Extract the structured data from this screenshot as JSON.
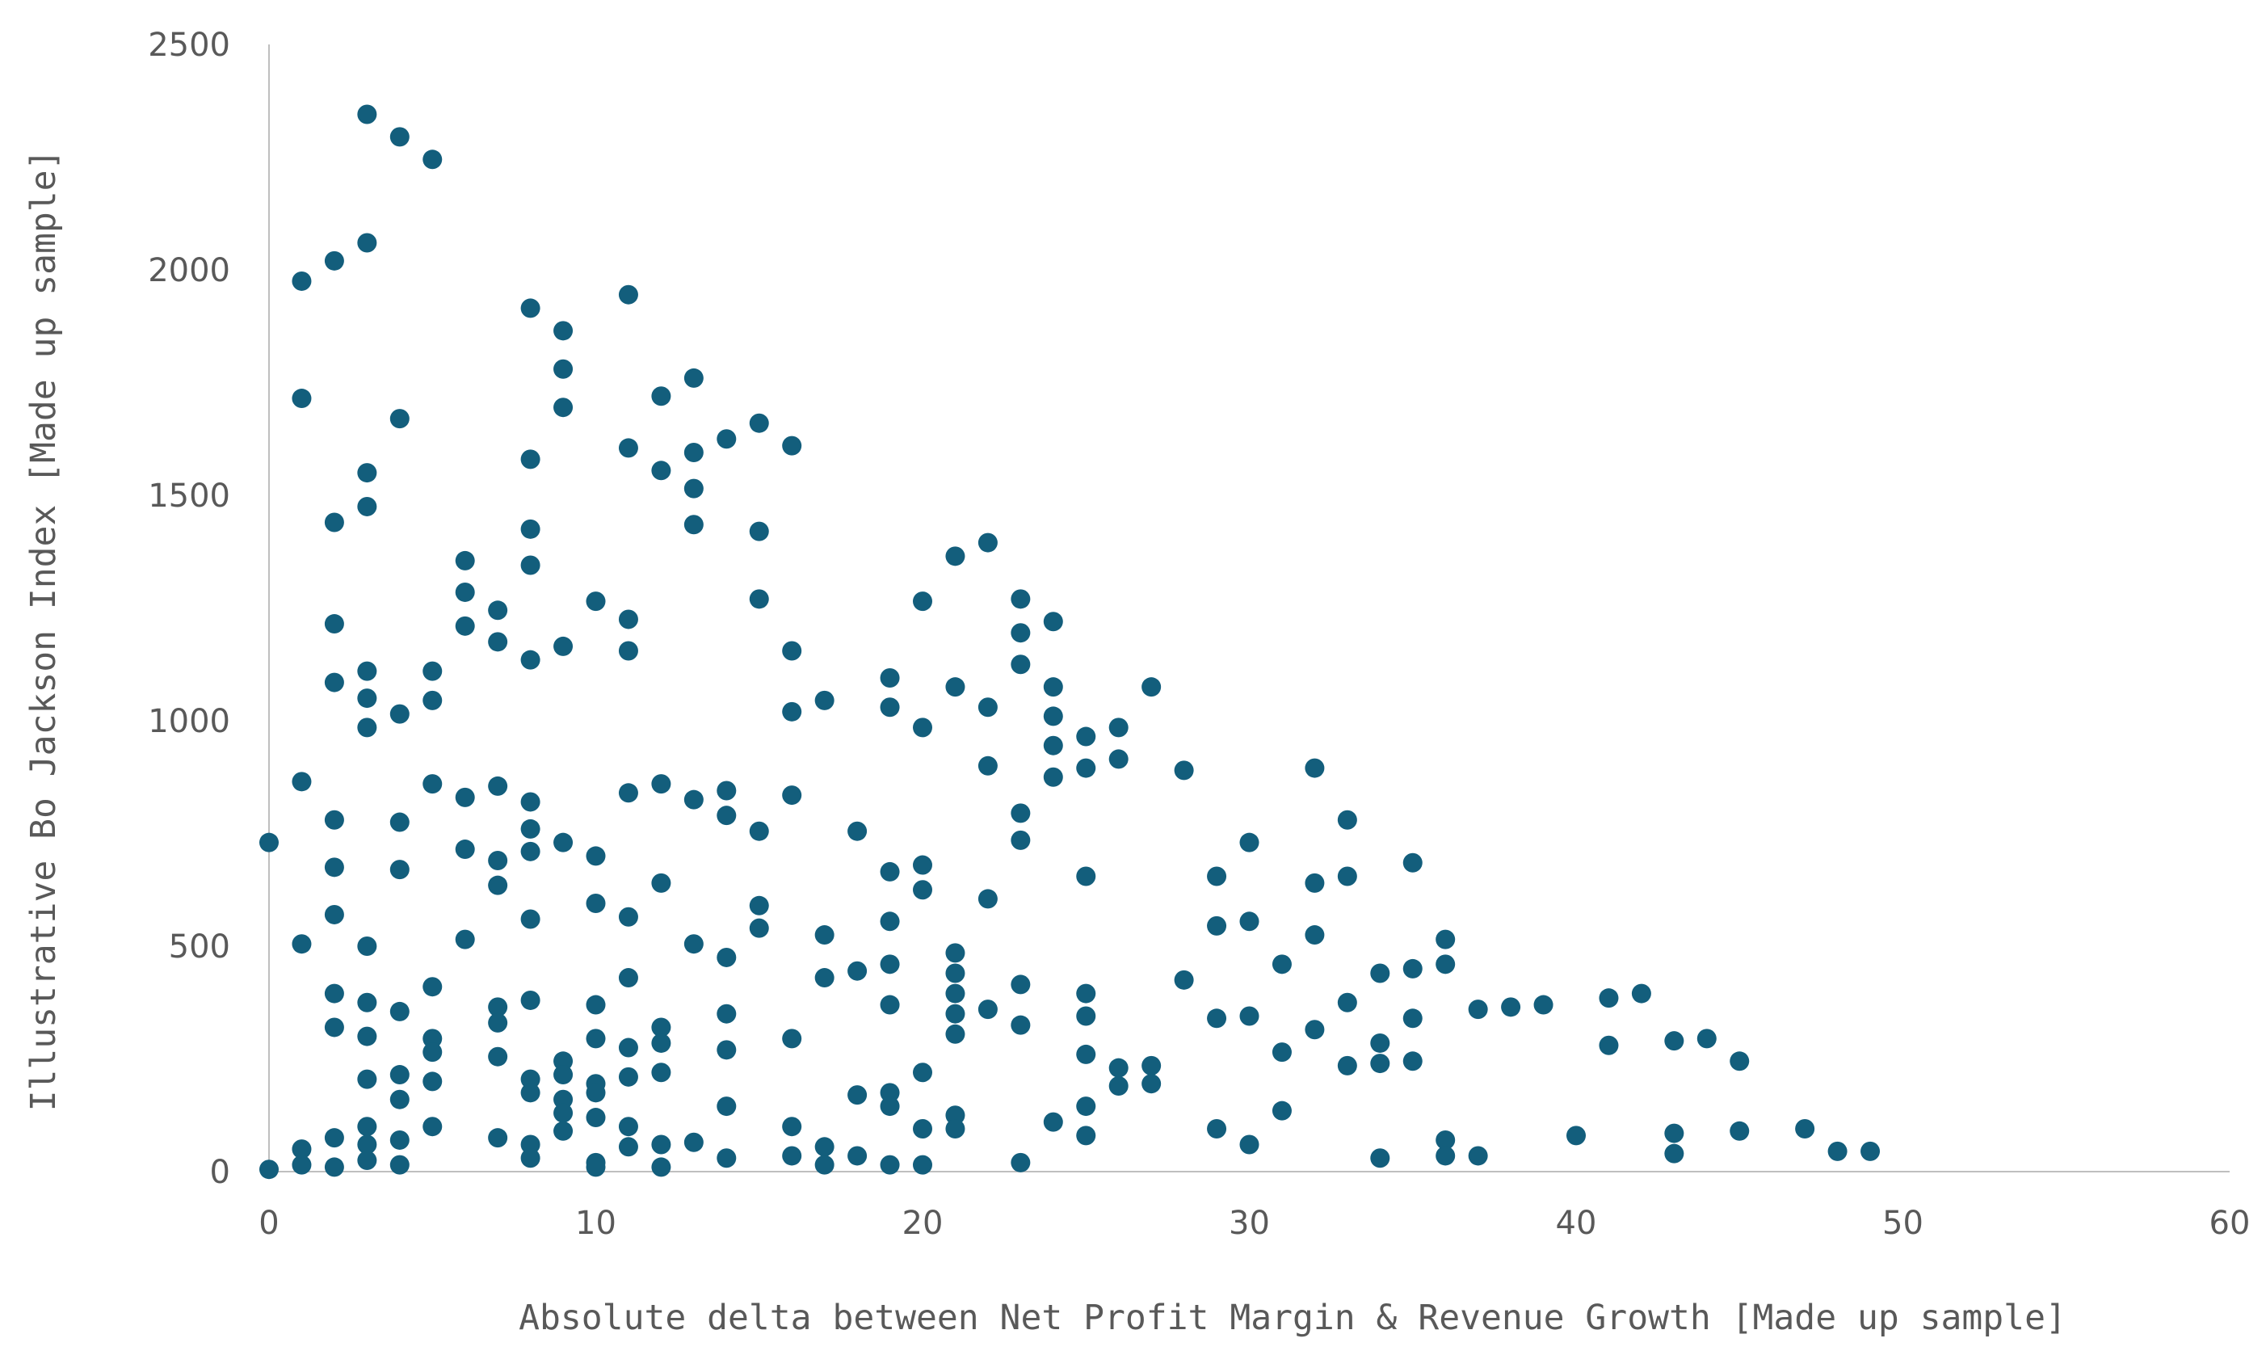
{
  "chart_data": {
    "type": "scatter",
    "xlabel": "Absolute delta between Net Profit Margin & Revenue Growth [Made up sample]",
    "ylabel": "Illustrative Bo Jackson Index [Made up sample]",
    "xlim": [
      0,
      60
    ],
    "ylim": [
      0,
      2500
    ],
    "xticks": [
      "0",
      "10",
      "20",
      "30",
      "40",
      "50",
      "60"
    ],
    "yticks": [
      "0",
      "500",
      "1000",
      "1500",
      "2000",
      "2500"
    ],
    "grid": false,
    "legend": "none",
    "colors": {
      "marker": "#135e7c",
      "axis": "#bfbfbf",
      "text": "#595959"
    },
    "series": [
      {
        "points": [
          [
            0,
            730
          ],
          [
            0,
            5
          ],
          [
            1,
            1975
          ],
          [
            1,
            1715
          ],
          [
            1,
            865
          ],
          [
            1,
            505
          ],
          [
            1,
            50
          ],
          [
            1,
            15
          ],
          [
            2,
            2020
          ],
          [
            2,
            1440
          ],
          [
            2,
            1215
          ],
          [
            2,
            1085
          ],
          [
            2,
            780
          ],
          [
            2,
            675
          ],
          [
            2,
            570
          ],
          [
            2,
            395
          ],
          [
            2,
            320
          ],
          [
            2,
            75
          ],
          [
            2,
            10
          ],
          [
            3,
            2345
          ],
          [
            3,
            2060
          ],
          [
            3,
            1550
          ],
          [
            3,
            1475
          ],
          [
            3,
            1110
          ],
          [
            3,
            1050
          ],
          [
            3,
            985
          ],
          [
            3,
            500
          ],
          [
            3,
            375
          ],
          [
            3,
            300
          ],
          [
            3,
            205
          ],
          [
            3,
            100
          ],
          [
            3,
            60
          ],
          [
            3,
            25
          ],
          [
            4,
            2295
          ],
          [
            4,
            1670
          ],
          [
            4,
            1015
          ],
          [
            4,
            775
          ],
          [
            4,
            670
          ],
          [
            4,
            355
          ],
          [
            4,
            215
          ],
          [
            4,
            160
          ],
          [
            4,
            70
          ],
          [
            4,
            15
          ],
          [
            5,
            2245
          ],
          [
            5,
            1110
          ],
          [
            5,
            1045
          ],
          [
            5,
            860
          ],
          [
            5,
            410
          ],
          [
            5,
            295
          ],
          [
            5,
            265
          ],
          [
            5,
            200
          ],
          [
            5,
            100
          ],
          [
            6,
            1355
          ],
          [
            6,
            1285
          ],
          [
            6,
            1210
          ],
          [
            6,
            830
          ],
          [
            6,
            715
          ],
          [
            6,
            515
          ],
          [
            7,
            1245
          ],
          [
            7,
            1175
          ],
          [
            7,
            855
          ],
          [
            7,
            690
          ],
          [
            7,
            635
          ],
          [
            7,
            365
          ],
          [
            7,
            330
          ],
          [
            7,
            255
          ],
          [
            7,
            75
          ],
          [
            8,
            1915
          ],
          [
            8,
            1580
          ],
          [
            8,
            1425
          ],
          [
            8,
            1345
          ],
          [
            8,
            1135
          ],
          [
            8,
            820
          ],
          [
            8,
            760
          ],
          [
            8,
            710
          ],
          [
            8,
            560
          ],
          [
            8,
            380
          ],
          [
            8,
            205
          ],
          [
            8,
            175
          ],
          [
            8,
            60
          ],
          [
            8,
            30
          ],
          [
            9,
            1865
          ],
          [
            9,
            1780
          ],
          [
            9,
            1695
          ],
          [
            9,
            1165
          ],
          [
            9,
            730
          ],
          [
            9,
            245
          ],
          [
            9,
            215
          ],
          [
            9,
            160
          ],
          [
            9,
            130
          ],
          [
            9,
            90
          ],
          [
            10,
            1265
          ],
          [
            10,
            700
          ],
          [
            10,
            595
          ],
          [
            10,
            370
          ],
          [
            10,
            295
          ],
          [
            10,
            195
          ],
          [
            10,
            175
          ],
          [
            10,
            120
          ],
          [
            10,
            20
          ],
          [
            10,
            10
          ],
          [
            11,
            1945
          ],
          [
            11,
            1605
          ],
          [
            11,
            1225
          ],
          [
            11,
            1155
          ],
          [
            11,
            840
          ],
          [
            11,
            565
          ],
          [
            11,
            430
          ],
          [
            11,
            275
          ],
          [
            11,
            210
          ],
          [
            11,
            100
          ],
          [
            11,
            55
          ],
          [
            12,
            1720
          ],
          [
            12,
            1555
          ],
          [
            12,
            860
          ],
          [
            12,
            640
          ],
          [
            12,
            320
          ],
          [
            12,
            285
          ],
          [
            12,
            220
          ],
          [
            12,
            60
          ],
          [
            12,
            10
          ],
          [
            13,
            1760
          ],
          [
            13,
            1595
          ],
          [
            13,
            1515
          ],
          [
            13,
            1435
          ],
          [
            13,
            825
          ],
          [
            13,
            505
          ],
          [
            13,
            65
          ],
          [
            14,
            1625
          ],
          [
            14,
            845
          ],
          [
            14,
            790
          ],
          [
            14,
            475
          ],
          [
            14,
            350
          ],
          [
            14,
            270
          ],
          [
            14,
            145
          ],
          [
            14,
            30
          ],
          [
            15,
            1660
          ],
          [
            15,
            1420
          ],
          [
            15,
            1270
          ],
          [
            15,
            755
          ],
          [
            15,
            590
          ],
          [
            15,
            540
          ],
          [
            16,
            1610
          ],
          [
            16,
            1155
          ],
          [
            16,
            1020
          ],
          [
            16,
            835
          ],
          [
            16,
            295
          ],
          [
            16,
            100
          ],
          [
            16,
            35
          ],
          [
            17,
            1045
          ],
          [
            17,
            525
          ],
          [
            17,
            430
          ],
          [
            17,
            55
          ],
          [
            17,
            15
          ],
          [
            18,
            755
          ],
          [
            18,
            445
          ],
          [
            18,
            170
          ],
          [
            18,
            35
          ],
          [
            19,
            1095
          ],
          [
            19,
            1030
          ],
          [
            19,
            665
          ],
          [
            19,
            555
          ],
          [
            19,
            460
          ],
          [
            19,
            370
          ],
          [
            19,
            175
          ],
          [
            19,
            145
          ],
          [
            19,
            15
          ],
          [
            20,
            1265
          ],
          [
            20,
            985
          ],
          [
            20,
            680
          ],
          [
            20,
            625
          ],
          [
            20,
            220
          ],
          [
            20,
            95
          ],
          [
            20,
            15
          ],
          [
            21,
            1365
          ],
          [
            21,
            1075
          ],
          [
            21,
            485
          ],
          [
            21,
            440
          ],
          [
            21,
            395
          ],
          [
            21,
            350
          ],
          [
            21,
            305
          ],
          [
            21,
            125
          ],
          [
            21,
            95
          ],
          [
            22,
            1395
          ],
          [
            22,
            1030
          ],
          [
            22,
            900
          ],
          [
            22,
            605
          ],
          [
            22,
            360
          ],
          [
            23,
            1270
          ],
          [
            23,
            1195
          ],
          [
            23,
            1125
          ],
          [
            23,
            795
          ],
          [
            23,
            735
          ],
          [
            23,
            415
          ],
          [
            23,
            325
          ],
          [
            23,
            20
          ],
          [
            24,
            1220
          ],
          [
            24,
            1075
          ],
          [
            24,
            1010
          ],
          [
            24,
            945
          ],
          [
            24,
            875
          ],
          [
            24,
            110
          ],
          [
            25,
            965
          ],
          [
            25,
            895
          ],
          [
            25,
            655
          ],
          [
            25,
            395
          ],
          [
            25,
            345
          ],
          [
            25,
            260
          ],
          [
            25,
            145
          ],
          [
            25,
            80
          ],
          [
            26,
            985
          ],
          [
            26,
            915
          ],
          [
            26,
            230
          ],
          [
            26,
            190
          ],
          [
            27,
            1075
          ],
          [
            27,
            235
          ],
          [
            27,
            195
          ],
          [
            28,
            890
          ],
          [
            28,
            425
          ],
          [
            29,
            655
          ],
          [
            29,
            545
          ],
          [
            29,
            340
          ],
          [
            29,
            95
          ],
          [
            30,
            730
          ],
          [
            30,
            555
          ],
          [
            30,
            345
          ],
          [
            30,
            60
          ],
          [
            31,
            460
          ],
          [
            31,
            265
          ],
          [
            31,
            135
          ],
          [
            32,
            895
          ],
          [
            32,
            640
          ],
          [
            32,
            525
          ],
          [
            32,
            315
          ],
          [
            33,
            780
          ],
          [
            33,
            655
          ],
          [
            33,
            375
          ],
          [
            33,
            235
          ],
          [
            34,
            440
          ],
          [
            34,
            285
          ],
          [
            34,
            240
          ],
          [
            34,
            30
          ],
          [
            35,
            685
          ],
          [
            35,
            450
          ],
          [
            35,
            340
          ],
          [
            35,
            245
          ],
          [
            36,
            515
          ],
          [
            36,
            460
          ],
          [
            36,
            70
          ],
          [
            36,
            35
          ],
          [
            37,
            360
          ],
          [
            37,
            35
          ],
          [
            38,
            365
          ],
          [
            39,
            370
          ],
          [
            40,
            80
          ],
          [
            41,
            385
          ],
          [
            41,
            280
          ],
          [
            42,
            395
          ],
          [
            43,
            290
          ],
          [
            43,
            85
          ],
          [
            43,
            40
          ],
          [
            44,
            295
          ],
          [
            45,
            245
          ],
          [
            45,
            90
          ],
          [
            47,
            95
          ],
          [
            48,
            45
          ],
          [
            49,
            45
          ]
        ]
      }
    ]
  }
}
